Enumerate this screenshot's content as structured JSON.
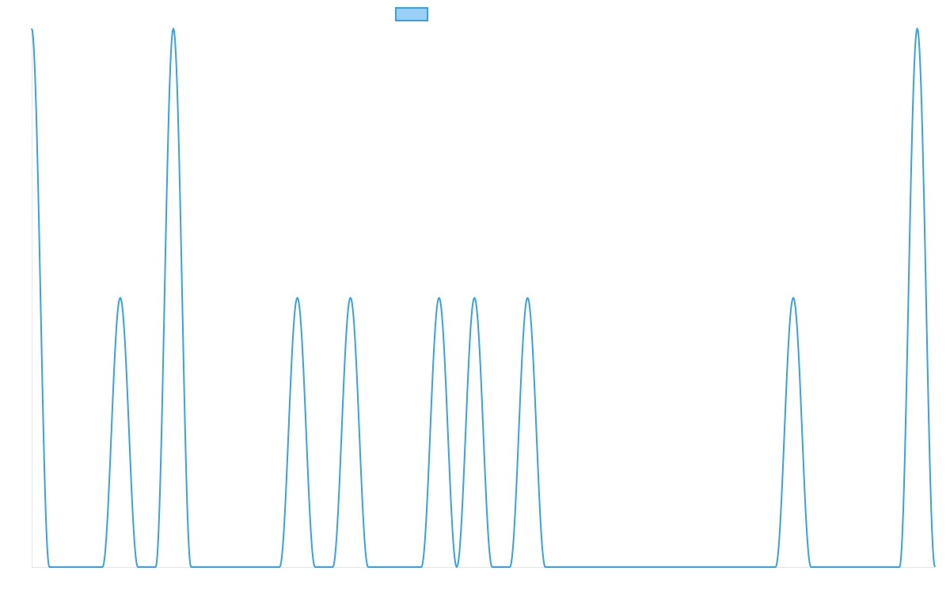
{
  "chart_data": {
    "type": "line",
    "title": "",
    "xlabel": "",
    "ylabel": "",
    "grid": false,
    "legend": {
      "placement": "top-center",
      "label": ""
    },
    "colors": {
      "line": "#36a2eb",
      "legend_fill": "#9ad0f5",
      "axis": "#e5e5e5"
    },
    "ylim": [
      0,
      2
    ],
    "x": [
      0,
      1,
      2,
      3,
      4,
      5,
      6,
      7,
      8,
      9,
      10,
      11,
      12,
      13,
      14,
      15,
      16,
      17,
      18,
      19,
      20,
      21,
      22,
      23,
      24,
      25,
      26,
      27,
      28,
      29,
      30,
      31,
      32,
      33,
      34,
      35,
      36,
      37,
      38,
      39,
      40,
      41,
      42,
      43,
      44,
      45,
      46,
      47,
      48,
      49,
      50,
      51
    ],
    "series": [
      {
        "values": [
          2,
          0,
          0,
          0,
          0,
          1,
          0,
          0,
          2,
          0,
          0,
          0,
          0,
          0,
          0,
          1,
          0,
          0,
          1,
          0,
          0,
          0,
          0,
          1,
          0,
          1,
          0,
          0,
          1,
          0,
          0,
          0,
          0,
          0,
          0,
          0,
          0,
          0,
          0,
          0,
          0,
          0,
          0,
          1,
          0,
          0,
          0,
          0,
          0,
          0,
          2,
          0
        ]
      }
    ]
  }
}
